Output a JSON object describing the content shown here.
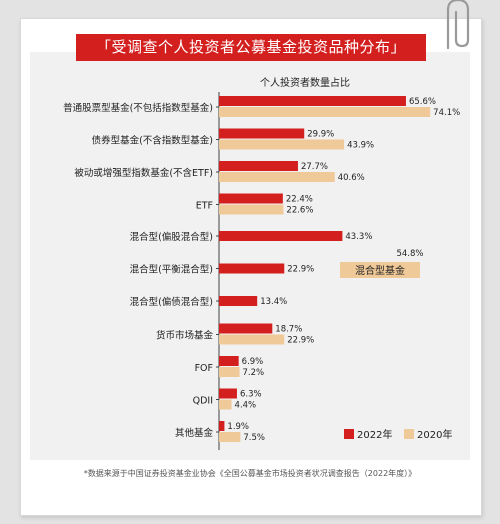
{
  "title": "「受调查个人投资者公募基金投资品种分布」",
  "footnote": "*数据来源于中国证券投资基金业协会《全国公募基金市场投资者状况调查报告（2022年度）》",
  "colors": {
    "series_2022": "#d41f1f",
    "series_2020": "#f0c998",
    "title_bg": "#d41f1f",
    "panel_bg": "#f1f1f1"
  },
  "chart_data": {
    "type": "bar",
    "orientation": "horizontal",
    "title": "个人投资者数量占比",
    "categories": [
      "普通股票型基金(不包括指数型基金)",
      "债券型基金(不含指数型基金)",
      "被动或增强型指数基金(不含ETF)",
      "ETF",
      "混合型(偏股混合型)",
      "混合型(平衡混合型)",
      "混合型(偏债混合型)",
      "货币市场基金",
      "FOF",
      "QDII",
      "其他基金"
    ],
    "series": [
      {
        "name": "2022年",
        "values": [
          65.6,
          29.9,
          27.7,
          22.4,
          43.3,
          22.9,
          13.4,
          18.7,
          6.9,
          6.3,
          1.9
        ],
        "labels": [
          "65.6%",
          "29.9%",
          "27.7%",
          "22.4%",
          "43.3%",
          "22.9%",
          "13.4%",
          "18.7%",
          "6.9%",
          "6.3%",
          "1.9%"
        ]
      },
      {
        "name": "2020年",
        "values": [
          74.1,
          43.9,
          40.6,
          22.6,
          null,
          null,
          null,
          22.9,
          7.2,
          4.4,
          7.5
        ],
        "labels": [
          "74.1%",
          "43.9%",
          "40.6%",
          "22.6%",
          null,
          null,
          null,
          "22.9%",
          "7.2%",
          "4.4%",
          "7.5%"
        ]
      }
    ],
    "annotation": {
      "text": "混合型基金",
      "value": 54.8,
      "value_label": "54.8%",
      "series": "2020年",
      "spans_categories": [
        "混合型(偏股混合型)",
        "混合型(平衡混合型)",
        "混合型(偏债混合型)"
      ]
    },
    "xlim": [
      0,
      80
    ],
    "grid": false,
    "legend": "bottom-right"
  }
}
